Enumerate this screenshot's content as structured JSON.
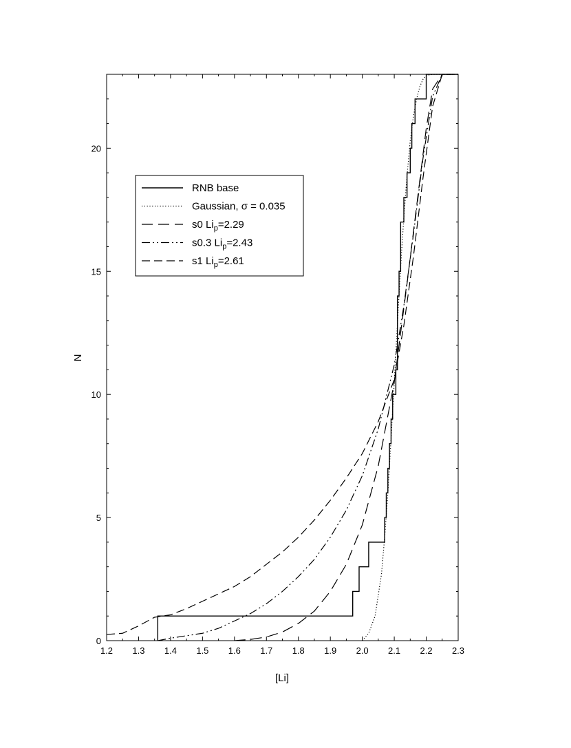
{
  "chart_data": {
    "type": "line",
    "title": "",
    "xlabel": "[Li]",
    "ylabel": "N",
    "xlim": [
      1.2,
      2.3
    ],
    "ylim": [
      0,
      23
    ],
    "xticks": [
      "1.2",
      "1.3",
      "1.4",
      "1.5",
      "1.6",
      "1.7",
      "1.8",
      "1.9",
      "2.0",
      "2.1",
      "2.2",
      "2.3"
    ],
    "yticks": [
      "0",
      "5",
      "10",
      "15",
      "20"
    ],
    "grid": false,
    "legend_position": "upper-left",
    "series": [
      {
        "name": "RNB base",
        "style": "solid-step",
        "color": "#000000",
        "x": [
          1.36,
          1.36,
          1.97,
          1.97,
          1.99,
          1.99,
          2.02,
          2.02,
          2.07,
          2.07,
          2.075,
          2.075,
          2.08,
          2.08,
          2.085,
          2.085,
          2.09,
          2.09,
          2.095,
          2.095,
          2.105,
          2.105,
          2.11,
          2.11,
          2.115,
          2.115,
          2.12,
          2.12,
          2.13,
          2.13,
          2.14,
          2.14,
          2.15,
          2.15,
          2.155,
          2.155,
          2.165,
          2.165,
          2.175,
          2.175,
          2.19,
          2.19,
          2.2,
          2.2,
          2.3
        ],
        "y": [
          0,
          1,
          1,
          2,
          2,
          3,
          3,
          4,
          4,
          5,
          5,
          6,
          6,
          7,
          7,
          8,
          8,
          9,
          9,
          10,
          10,
          11,
          11,
          14,
          14,
          15,
          15,
          17,
          17,
          18,
          18,
          19,
          19,
          20,
          20,
          21,
          21,
          22,
          22,
          22,
          22,
          22,
          22,
          23,
          23
        ]
      },
      {
        "name": "Gaussian, σ = 0.035",
        "style": "dotted",
        "color": "#000000",
        "x": [
          2.0,
          2.02,
          2.04,
          2.06,
          2.07,
          2.08,
          2.09,
          2.1,
          2.11,
          2.12,
          2.13,
          2.14,
          2.15,
          2.16,
          2.17,
          2.18,
          2.19,
          2.2,
          2.22,
          2.25,
          2.3
        ],
        "y": [
          0,
          0.3,
          1.0,
          2.7,
          4.2,
          6.0,
          8.2,
          10.5,
          12.9,
          15.2,
          17.2,
          18.9,
          20.3,
          21.3,
          22.0,
          22.5,
          22.8,
          22.95,
          23,
          23,
          23
        ]
      },
      {
        "name": "s0 Li_p=2.29",
        "style": "long-dash",
        "color": "#000000",
        "x": [
          1.6,
          1.65,
          1.7,
          1.75,
          1.8,
          1.85,
          1.9,
          1.95,
          2.0,
          2.05,
          2.1,
          2.12,
          2.14,
          2.16,
          2.18,
          2.2,
          2.22,
          2.25,
          2.3
        ],
        "y": [
          0,
          0.05,
          0.15,
          0.35,
          0.7,
          1.2,
          2.0,
          3.1,
          4.7,
          7.1,
          10.5,
          12.5,
          14.5,
          16.6,
          18.7,
          20.8,
          22.4,
          23,
          23
        ]
      },
      {
        "name": "s0.3 Li_p=2.43",
        "style": "dash-dot-dot",
        "color": "#000000",
        "x": [
          1.36,
          1.4,
          1.45,
          1.5,
          1.55,
          1.6,
          1.65,
          1.7,
          1.75,
          1.8,
          1.85,
          1.9,
          1.95,
          2.0,
          2.05,
          2.1,
          2.13,
          2.16,
          2.19,
          2.22,
          2.25,
          2.3
        ],
        "y": [
          0,
          0.1,
          0.2,
          0.3,
          0.5,
          0.8,
          1.1,
          1.5,
          2.0,
          2.6,
          3.3,
          4.2,
          5.3,
          6.7,
          8.6,
          11.2,
          13.6,
          16.5,
          19.6,
          22.1,
          23,
          23
        ]
      },
      {
        "name": "s1 Li_p=2.61",
        "style": "dash",
        "color": "#000000",
        "x": [
          1.2,
          1.25,
          1.3,
          1.35,
          1.4,
          1.45,
          1.5,
          1.55,
          1.6,
          1.65,
          1.7,
          1.75,
          1.8,
          1.85,
          1.9,
          1.95,
          2.0,
          2.05,
          2.1,
          2.13,
          2.16,
          2.19,
          2.22,
          2.25,
          2.3
        ],
        "y": [
          0.25,
          0.3,
          0.6,
          0.95,
          1.05,
          1.3,
          1.6,
          1.9,
          2.2,
          2.6,
          3.1,
          3.6,
          4.2,
          4.9,
          5.7,
          6.6,
          7.6,
          8.9,
          10.6,
          12.8,
          15.6,
          18.8,
          21.7,
          23,
          23
        ]
      }
    ]
  },
  "legend": {
    "items": [
      {
        "text": "RNB base",
        "sub": "",
        "suffix": ""
      },
      {
        "text": "Gaussian, σ = 0.035",
        "sub": "",
        "suffix": ""
      },
      {
        "text": "s0 Li",
        "sub": "p",
        "suffix": "=2.29"
      },
      {
        "text": "s0.3 Li",
        "sub": "p",
        "suffix": "=2.43"
      },
      {
        "text": "s1 Li",
        "sub": "p",
        "suffix": "=2.61"
      }
    ]
  }
}
